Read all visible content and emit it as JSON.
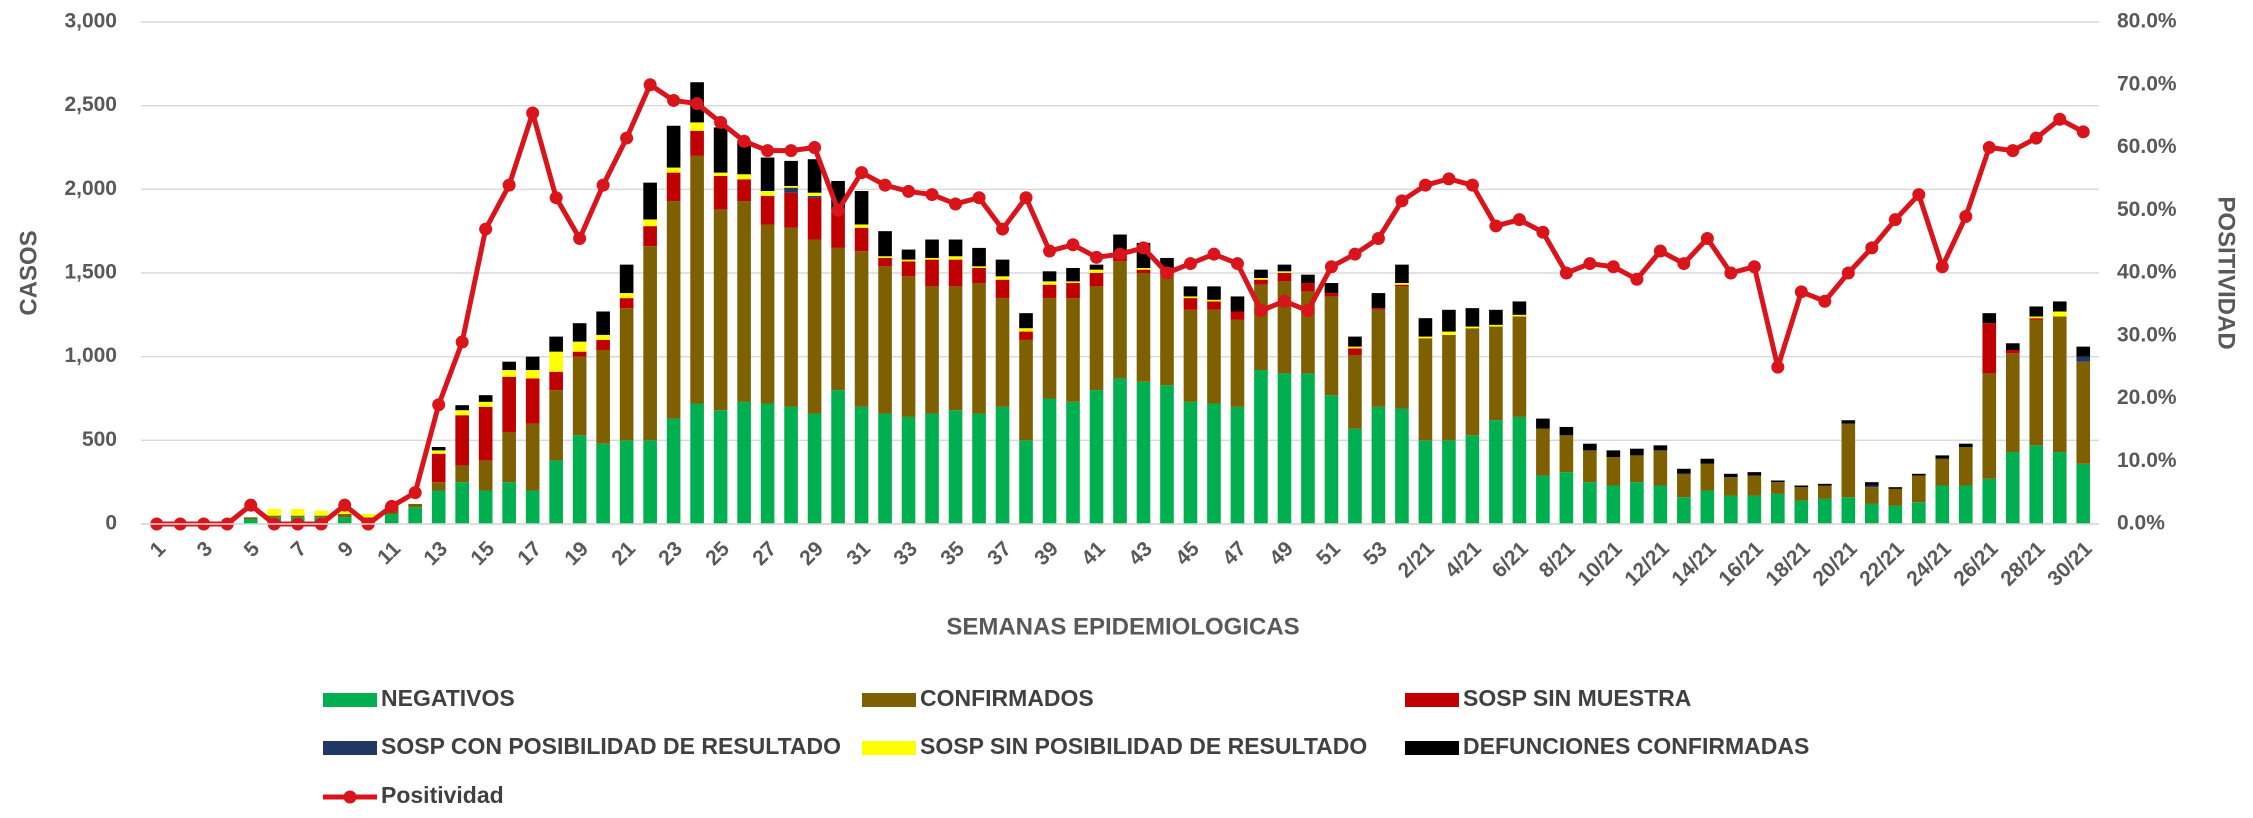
{
  "chart_data": {
    "type": "bar",
    "stacked": true,
    "grid": true,
    "legend": "bottom",
    "x_label": "SEMANAS EPIDEMIOLOGICAS",
    "y_label": "CASOS",
    "y2_label": "POSITIVIDAD",
    "categories": [
      "1",
      null,
      "3",
      null,
      "5",
      null,
      "7",
      null,
      "9",
      null,
      "11",
      null,
      "13",
      null,
      "15",
      null,
      "17",
      null,
      "19",
      null,
      "21",
      null,
      "23",
      null,
      "25",
      null,
      "27",
      null,
      "29",
      null,
      "31",
      null,
      "33",
      null,
      "35",
      null,
      "37",
      null,
      "39",
      null,
      "41",
      null,
      "43",
      null,
      "45",
      null,
      "47",
      null,
      "49",
      null,
      "51",
      null,
      "53",
      null,
      "2/21",
      null,
      "4/21",
      null,
      "6/21",
      null,
      "8/21",
      null,
      "10/21",
      null,
      "12/21",
      null,
      "14/21",
      null,
      "16/21",
      null,
      "18/21",
      null,
      "20/21",
      null,
      "22/21",
      null,
      "24/21",
      null,
      "26/21",
      null,
      "28/21",
      null,
      "30/21"
    ],
    "ylim": [
      0,
      3000
    ],
    "yticks": [
      0,
      500,
      {
        "value": 1000,
        "label": "1,000"
      },
      {
        "value": 1500,
        "label": "1,500"
      },
      {
        "value": 2000,
        "label": "2,000"
      },
      {
        "value": 2500,
        "label": "2,500"
      },
      {
        "value": 3000,
        "label": "3,000"
      }
    ],
    "y2lim": [
      0,
      80
    ],
    "y2ticks": [
      {
        "value": 0,
        "label": "0.0%"
      },
      {
        "value": 10,
        "label": "10.0%"
      },
      {
        "value": 20,
        "label": "20.0%"
      },
      {
        "value": 30,
        "label": "30.0%"
      },
      {
        "value": 40,
        "label": "40.0%"
      },
      {
        "value": 50,
        "label": "50.0%"
      },
      {
        "value": 60,
        "label": "60.0%"
      },
      {
        "value": 70,
        "label": "70.0%"
      },
      {
        "value": 80,
        "label": "80.0%"
      }
    ],
    "series": [
      {
        "name": "NEGATIVOS",
        "color": "#00b050",
        "values": [
          0,
          0,
          0,
          0,
          30,
          40,
          40,
          40,
          40,
          30,
          60,
          100,
          200,
          250,
          200,
          250,
          200,
          380,
          530,
          480,
          500,
          500,
          630,
          720,
          680,
          730,
          720,
          700,
          660,
          800,
          700,
          660,
          640,
          660,
          680,
          660,
          700,
          500,
          750,
          730,
          800,
          870,
          850,
          830,
          730,
          720,
          700,
          920,
          900,
          900,
          770,
          570,
          700,
          690,
          500,
          500,
          530,
          620,
          640,
          290,
          310,
          250,
          230,
          250,
          230,
          160,
          200,
          170,
          170,
          180,
          140,
          150,
          160,
          120,
          110,
          130,
          230,
          230,
          270,
          430,
          470,
          430,
          360
        ]
      },
      {
        "name": "CONFIRMADOS",
        "color": "#7f6000",
        "values": [
          0,
          0,
          0,
          0,
          10,
          10,
          10,
          10,
          20,
          10,
          40,
          20,
          50,
          100,
          180,
          300,
          400,
          420,
          470,
          560,
          790,
          1160,
          1300,
          1480,
          1200,
          1200,
          1070,
          1070,
          1040,
          850,
          930,
          880,
          840,
          760,
          740,
          780,
          650,
          600,
          600,
          620,
          620,
          700,
          650,
          660,
          550,
          560,
          520,
          510,
          550,
          490,
          590,
          440,
          580,
          730,
          610,
          630,
          640,
          560,
          600,
          280,
          220,
          190,
          170,
          160,
          210,
          140,
          160,
          110,
          120,
          70,
          80,
          80,
          440,
          100,
          100,
          160,
          160,
          230,
          630,
          590,
          750,
          810,
          610
        ]
      },
      {
        "name": "SOSP SIN MUESTRA",
        "color": "#c00000",
        "values": [
          0,
          0,
          0,
          0,
          0,
          0,
          0,
          0,
          0,
          0,
          10,
          0,
          170,
          300,
          320,
          330,
          270,
          110,
          30,
          60,
          60,
          120,
          170,
          150,
          200,
          130,
          170,
          210,
          250,
          230,
          140,
          50,
          90,
          160,
          160,
          90,
          110,
          50,
          80,
          90,
          80,
          40,
          20,
          30,
          70,
          50,
          50,
          30,
          50,
          50,
          20,
          40,
          10,
          10,
          0,
          0,
          0,
          0,
          0,
          0,
          0,
          0,
          0,
          0,
          0,
          0,
          0,
          0,
          0,
          0,
          0,
          0,
          0,
          0,
          0,
          0,
          0,
          0,
          300,
          20,
          10,
          0,
          0
        ]
      },
      {
        "name": "SOSP CON POSIBILIDAD DE RESULTADO",
        "color": "#1f3864",
        "values": [
          0,
          0,
          0,
          0,
          0,
          0,
          0,
          0,
          0,
          0,
          0,
          0,
          0,
          0,
          0,
          0,
          0,
          0,
          0,
          0,
          0,
          0,
          0,
          0,
          0,
          0,
          0,
          30,
          10,
          0,
          0,
          0,
          0,
          0,
          0,
          0,
          0,
          0,
          0,
          0,
          0,
          0,
          0,
          0,
          0,
          0,
          0,
          0,
          0,
          0,
          0,
          0,
          0,
          0,
          0,
          0,
          0,
          0,
          0,
          0,
          0,
          0,
          0,
          0,
          0,
          0,
          0,
          0,
          0,
          0,
          0,
          0,
          0,
          10,
          0,
          0,
          0,
          0,
          0,
          0,
          0,
          0,
          30
        ]
      },
      {
        "name": "SOSP SIN POSIBILIDAD DE RESULTADO",
        "color": "#ffff00",
        "values": [
          0,
          0,
          0,
          0,
          0,
          40,
          40,
          30,
          20,
          20,
          0,
          0,
          20,
          30,
          30,
          40,
          50,
          120,
          60,
          30,
          30,
          40,
          30,
          50,
          20,
          30,
          30,
          10,
          20,
          0,
          20,
          10,
          10,
          10,
          20,
          10,
          20,
          20,
          20,
          10,
          20,
          10,
          10,
          10,
          10,
          10,
          0,
          10,
          10,
          0,
          0,
          10,
          0,
          10,
          10,
          20,
          10,
          10,
          10,
          0,
          0,
          0,
          0,
          0,
          0,
          0,
          0,
          0,
          0,
          0,
          0,
          0,
          0,
          0,
          0,
          0,
          0,
          0,
          0,
          0,
          10,
          30,
          0
        ]
      },
      {
        "name": "DEFUNCIONES CONFIRMADAS",
        "color": "#000000",
        "values": [
          0,
          0,
          0,
          0,
          0,
          0,
          0,
          0,
          0,
          0,
          0,
          0,
          20,
          30,
          40,
          50,
          80,
          90,
          110,
          140,
          170,
          220,
          250,
          240,
          270,
          200,
          200,
          150,
          200,
          170,
          200,
          150,
          60,
          110,
          100,
          110,
          100,
          90,
          60,
          80,
          30,
          110,
          150,
          60,
          60,
          80,
          90,
          50,
          40,
          50,
          60,
          60,
          90,
          110,
          110,
          130,
          110,
          90,
          80,
          60,
          50,
          40,
          40,
          40,
          30,
          30,
          30,
          20,
          20,
          10,
          10,
          10,
          20,
          20,
          10,
          10,
          20,
          20,
          60,
          40,
          60,
          60,
          60
        ]
      },
      {
        "name": "Positividad",
        "type": "line",
        "axis": "y2",
        "color": "#d9141b",
        "values": [
          0,
          0,
          0,
          0,
          3,
          0,
          0,
          0,
          3,
          0,
          2.8,
          5,
          19,
          29,
          47,
          54,
          65.5,
          52,
          45.5,
          54,
          61.5,
          70,
          67.5,
          67,
          64,
          61,
          59.5,
          59.5,
          60,
          50,
          56,
          54,
          53,
          52.5,
          51,
          52,
          47,
          52,
          43.5,
          44.5,
          42.5,
          43,
          44,
          40,
          41.5,
          43,
          41.5,
          34,
          35.5,
          34,
          41,
          43,
          45.5,
          51.5,
          54,
          55,
          54,
          47.5,
          48.5,
          46.5,
          40,
          41.5,
          41,
          39,
          43.5,
          41.5,
          45.5,
          40,
          41,
          25,
          37,
          35.5,
          40,
          44,
          48.5,
          52.5,
          41,
          49,
          60,
          59.5,
          61.5,
          64.5,
          62.5
        ]
      }
    ]
  }
}
